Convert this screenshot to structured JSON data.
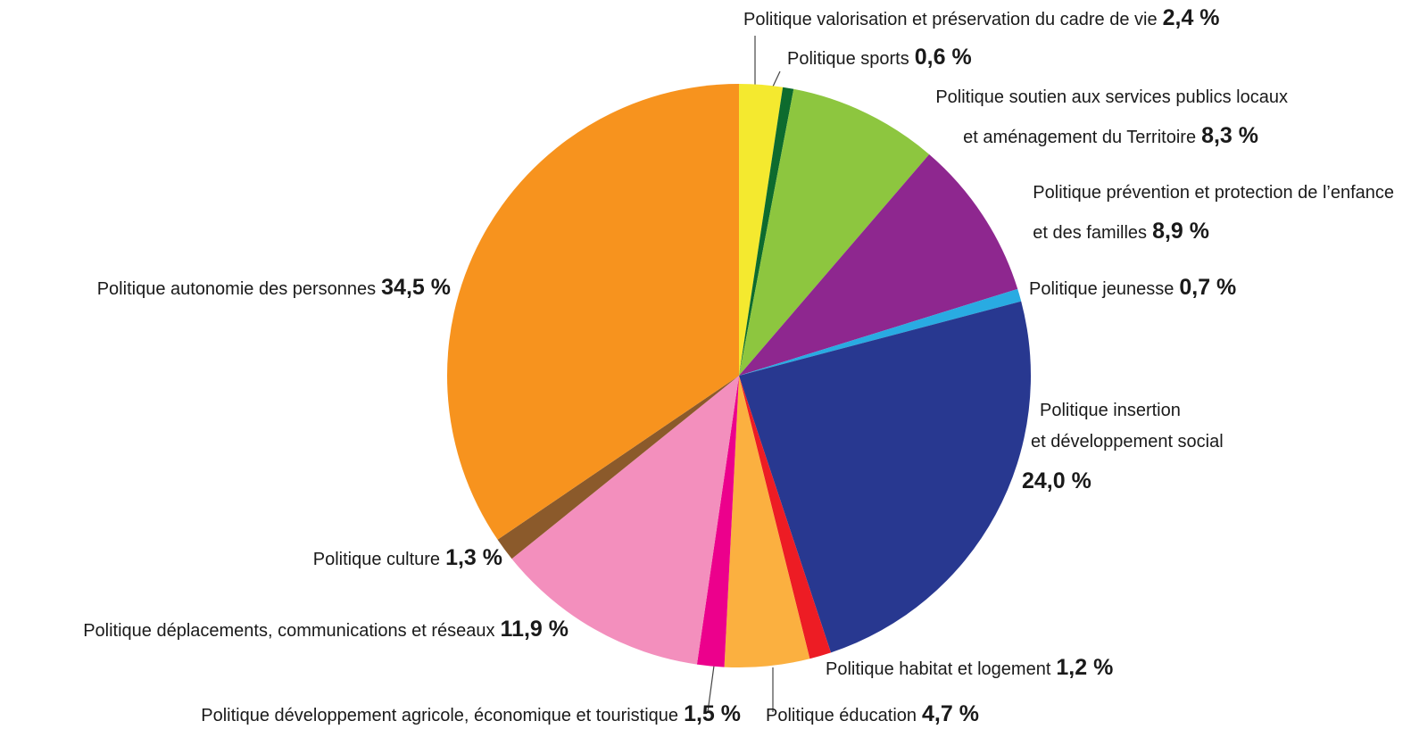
{
  "chart_data": {
    "type": "pie",
    "categories": [
      [
        "Politique valorisation et préservation du cadre de vie"
      ],
      [
        "Politique sports"
      ],
      [
        "Politique soutien aux services publics locaux",
        "et aménagement du Territoire"
      ],
      [
        "Politique prévention et protection de l’enfance",
        "et des familles"
      ],
      [
        "Politique jeunesse"
      ],
      [
        "Politique insertion",
        "et développement social"
      ],
      [
        "Politique habitat et logement"
      ],
      [
        "Politique éducation"
      ],
      [
        "Politique développement agricole, économique et touristique"
      ],
      [
        "Politique déplacements, communications et réseaux"
      ],
      [
        "Politique culture"
      ],
      [
        "Politique autonomie des personnes"
      ]
    ],
    "values": [
      2.4,
      0.6,
      8.3,
      8.9,
      0.7,
      24.0,
      1.2,
      4.7,
      1.5,
      11.9,
      1.3,
      34.5
    ],
    "value_labels": [
      "2,4 %",
      "0,6 %",
      "8,3 %",
      "8,9 %",
      "0,7 %",
      "24,0 %",
      "1,2 %",
      "4,7 %",
      "1,5 %",
      "11,9 %",
      "1,3 %",
      "34,5 %"
    ],
    "colors": [
      "#f4e92f",
      "#0d6b2e",
      "#8dc63f",
      "#8e278f",
      "#29abe2",
      "#283890",
      "#ed1c24",
      "#fbb040",
      "#ec008c",
      "#f38fbd",
      "#8b5a2b",
      "#f7931e"
    ]
  }
}
